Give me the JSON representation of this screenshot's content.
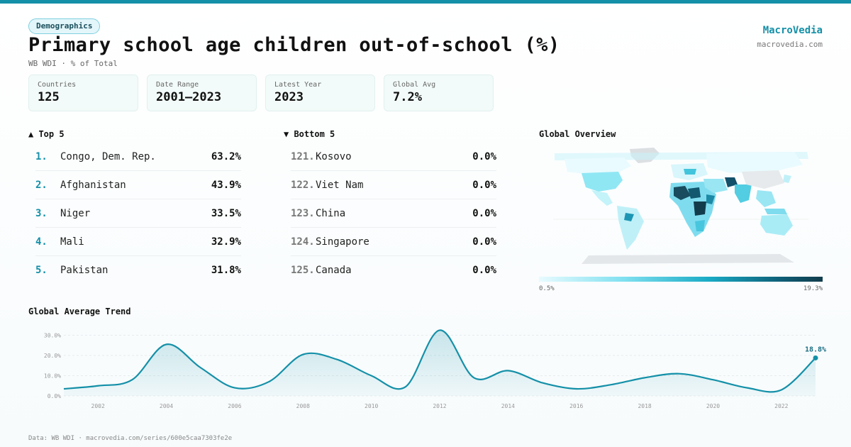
{
  "header": {
    "badge": "Demographics",
    "title": "Primary school age children out-of-school (%)",
    "subtitle": "WB WDI · % of Total",
    "brand": "MacroVedia",
    "brand_url": "macrovedia.com"
  },
  "stats": [
    {
      "label": "Countries",
      "value": "125"
    },
    {
      "label": "Date Range",
      "value": "2001–2023"
    },
    {
      "label": "Latest Year",
      "value": "2023"
    },
    {
      "label": "Global Avg",
      "value": "7.2%"
    }
  ],
  "top5": {
    "heading": "▲ Top 5",
    "items": [
      {
        "rank": "1.",
        "name": "Congo, Dem. Rep.",
        "value": "63.2%"
      },
      {
        "rank": "2.",
        "name": "Afghanistan",
        "value": "43.9%"
      },
      {
        "rank": "3.",
        "name": "Niger",
        "value": "33.5%"
      },
      {
        "rank": "4.",
        "name": "Mali",
        "value": "32.9%"
      },
      {
        "rank": "5.",
        "name": "Pakistan",
        "value": "31.8%"
      }
    ]
  },
  "bottom5": {
    "heading": "▼ Bottom 5",
    "items": [
      {
        "rank": "121.",
        "name": "Kosovo",
        "value": "0.0%"
      },
      {
        "rank": "122.",
        "name": "Viet Nam",
        "value": "0.0%"
      },
      {
        "rank": "123.",
        "name": "China",
        "value": "0.0%"
      },
      {
        "rank": "124.",
        "name": "Singapore",
        "value": "0.0%"
      },
      {
        "rank": "125.",
        "name": "Canada",
        "value": "0.0%"
      }
    ]
  },
  "map": {
    "heading": "Global Overview",
    "legend_min": "0.5%",
    "legend_max": "19.3%"
  },
  "trend": {
    "heading": "Global Average Trend"
  },
  "chart_data": {
    "type": "area",
    "x": [
      2001,
      2002,
      2003,
      2004,
      2005,
      2006,
      2007,
      2008,
      2009,
      2010,
      2011,
      2012,
      2013,
      2014,
      2015,
      2016,
      2017,
      2018,
      2019,
      2020,
      2021,
      2022,
      2023
    ],
    "values": [
      3.5,
      5.0,
      8.0,
      25.5,
      14.0,
      4.0,
      7.0,
      20.5,
      18.0,
      10.0,
      4.5,
      32.5,
      9.0,
      12.5,
      6.5,
      3.5,
      5.5,
      9.0,
      11.0,
      8.0,
      4.0,
      3.0,
      18.8
    ],
    "yticks": [
      0,
      10,
      20,
      30
    ],
    "ytick_labels": [
      "0.0%",
      "10.0%",
      "20.0%",
      "30.0%"
    ],
    "xticks": [
      2002,
      2004,
      2006,
      2008,
      2010,
      2012,
      2014,
      2016,
      2018,
      2020,
      2022
    ],
    "ylim": [
      0,
      33
    ],
    "xlim": [
      2001,
      2023
    ],
    "last_label": "18.8%",
    "grid": true,
    "color": "#1490a8"
  },
  "footer": "Data: WB WDI · macrovedia.com/series/600e5caa7303fe2e"
}
